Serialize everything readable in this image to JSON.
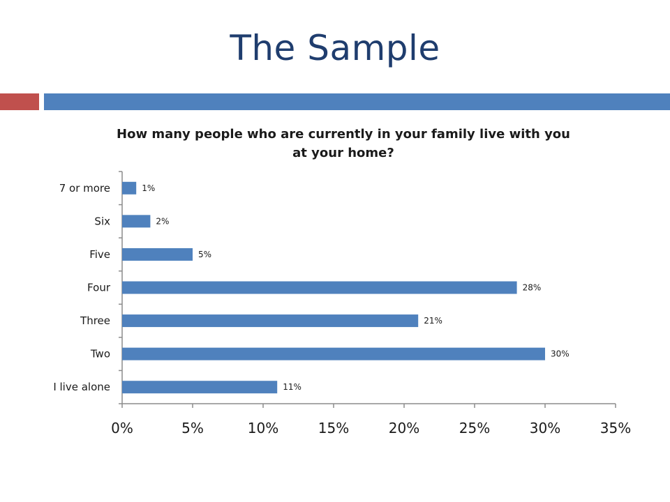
{
  "slide": {
    "title": "The Sample"
  },
  "colors": {
    "title": "#1f3d6e",
    "accent_red": "#c0504d",
    "accent_blue": "#4f81bd",
    "bar": "#4f81bd",
    "axis": "#8c8c8c"
  },
  "chart_data": {
    "type": "bar",
    "orientation": "horizontal",
    "title_lines": [
      "How many people who are currently in your family live with you",
      "at your home?"
    ],
    "categories": [
      "7 or more",
      "Six",
      "Five",
      "Four",
      "Three",
      "Two",
      "I live alone"
    ],
    "values": [
      1,
      2,
      5,
      28,
      21,
      30,
      11
    ],
    "value_labels": [
      "1%",
      "2%",
      "5%",
      "28%",
      "21%",
      "30%",
      "11%"
    ],
    "x_ticks": [
      "0%",
      "5%",
      "10%",
      "15%",
      "20%",
      "25%",
      "30%",
      "35%"
    ],
    "xlim": [
      0,
      35
    ],
    "grid": false,
    "legend": "none"
  }
}
